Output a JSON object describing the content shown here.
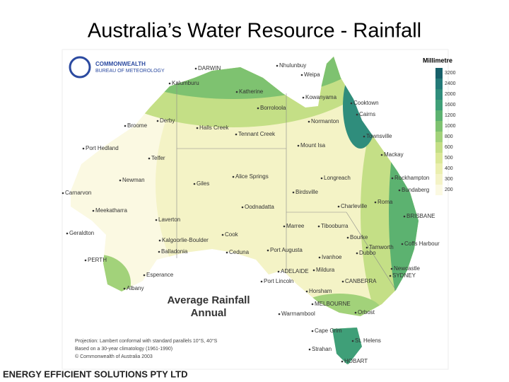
{
  "title": "Australia’s Water Resource - Rainfall",
  "logo": {
    "line1": "COMMONWEALTH",
    "line2": "BUREAU OF METEOROLOGY"
  },
  "legend": {
    "title": "Millimetre",
    "items": [
      {
        "label": "3200",
        "color": "#17606a"
      },
      {
        "label": "2400",
        "color": "#237a78"
      },
      {
        "label": "2000",
        "color": "#2f8d7c"
      },
      {
        "label": "1600",
        "color": "#3f9f78"
      },
      {
        "label": "1200",
        "color": "#5cb270"
      },
      {
        "label": "1000",
        "color": "#7ec270"
      },
      {
        "label": "800",
        "color": "#a2d27a"
      },
      {
        "label": "600",
        "color": "#c4df86"
      },
      {
        "label": "500",
        "color": "#dbe897"
      },
      {
        "label": "400",
        "color": "#ebefaf"
      },
      {
        "label": "300",
        "color": "#f4f3c6"
      },
      {
        "label": "200",
        "color": "#fbf9e2"
      }
    ]
  },
  "places": [
    "DARWIN",
    "Nhulunbuy",
    "Weipa",
    "Kalumburu",
    "Katherine",
    "Borroloola",
    "Kowanyama",
    "Cooktown",
    "Cairns",
    "Normanton",
    "Townsville",
    "Mackay",
    "Rockhampton",
    "Bundaberg",
    "BRISBANE",
    "Coffs Harbour",
    "Newcastle",
    "SYDNEY",
    "CANBERRA",
    "MELBOURNE",
    "Orbost",
    "Warrnambool",
    "Horsham",
    "Mildura",
    "ADELAIDE",
    "Port Lincoln",
    "Ceduna",
    "Port Augusta",
    "Marree",
    "Oodnadatta",
    "Birdsville",
    "Longreach",
    "Mount Isa",
    "Tennant Creek",
    "Halls Creek",
    "Derby",
    "Broome",
    "Port Hedland",
    "Telfer",
    "Newman",
    "Giles",
    "Alice Springs",
    "Carnarvon",
    "Meekatharra",
    "Geraldton",
    "Laverton",
    "Kalgoorlie-Boulder",
    "Balladonia",
    "PERTH",
    "Esperance",
    "Albany",
    "Cook",
    "Charleville",
    "Bourke",
    "Dubbo",
    "Tamworth",
    "Ivanhoe",
    "Tibooburra",
    "Roma",
    "Cape Grim",
    "St. Helens",
    "Strahan",
    "HOBART"
  ],
  "map_title": {
    "line1": "Average  Rainfall",
    "line2": "Annual"
  },
  "notes": [
    "Projection: Lambert conformal with standard parallels 10°S, 40°S",
    "Based on a 30-year climatology (1961-1990)",
    "© Commonwealth of Australia 2003"
  ],
  "footer": "ENERGY EFFICIENT SOLUTIONS PTY LTD"
}
